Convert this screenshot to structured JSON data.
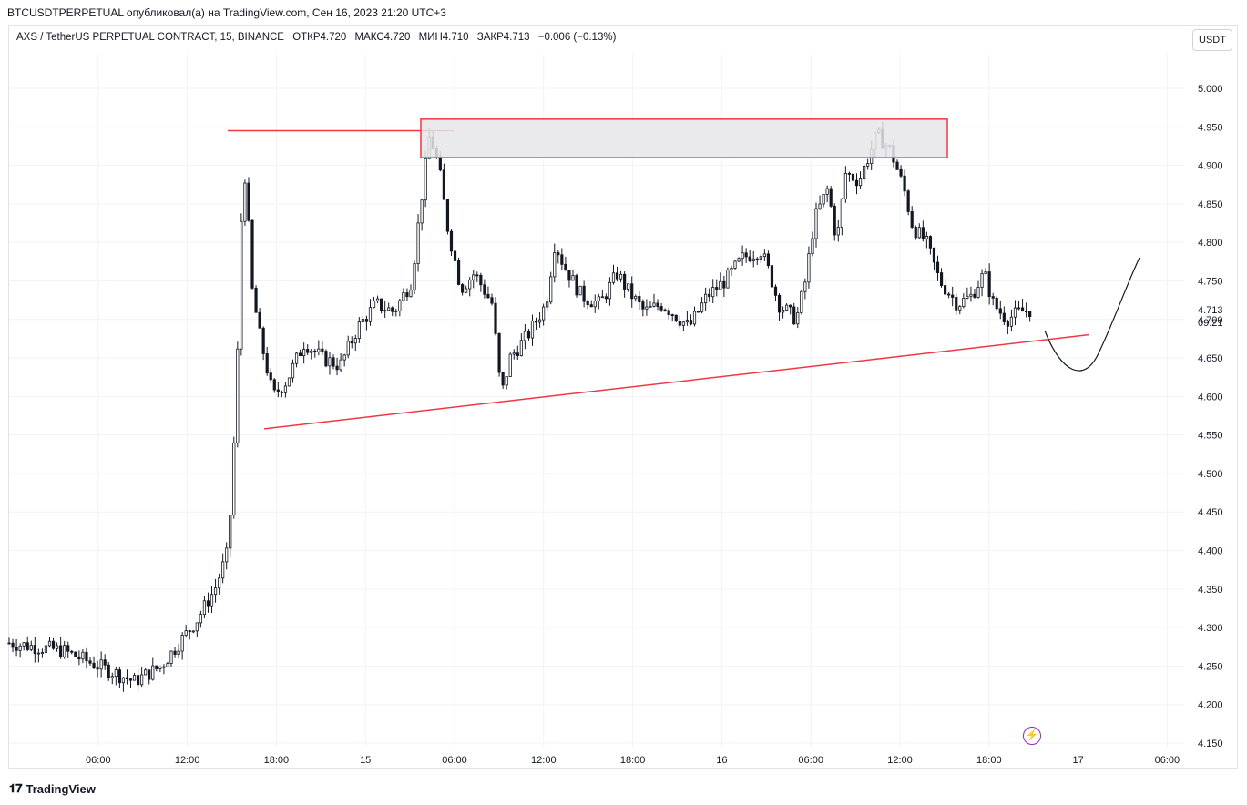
{
  "header": {
    "published_by": "BTCUSDTPERPETUAL опубликовал(а) на TradingView.com, Сен 16, 2023 21:20 UTC+3"
  },
  "legend": {
    "symbol": "AXS / TetherUS PERPETUAL CONTRACT, 15, BINANCE",
    "open": "ОТКР4.720",
    "high": "МАКС4.720",
    "low": "МИН4.710",
    "close": "ЗАКР4.713",
    "change": "−0.006 (−0.13%)"
  },
  "currency_button": "USDT",
  "branding": "TradingView",
  "last_price": {
    "value": "4.713",
    "countdown": "09:21"
  },
  "colors": {
    "candle": "#131722",
    "drawing_red": "#f23645",
    "zone_fill": "#e6e6ea",
    "grid": "#f0f3fa",
    "bolt": "#9c27b0"
  },
  "chart_data": {
    "type": "candlestick",
    "interval": "15",
    "y_ticks": [
      "5.000",
      "4.950",
      "4.900",
      "4.850",
      "4.800",
      "4.750",
      "4.700",
      "4.650",
      "4.600",
      "4.550",
      "4.500",
      "4.450",
      "4.400",
      "4.350",
      "4.300",
      "4.250",
      "4.200",
      "4.150"
    ],
    "ylim": [
      4.15,
      5.0
    ],
    "x_ticks": [
      "06:00",
      "12:00",
      "18:00",
      "15",
      "06:00",
      "12:00",
      "18:00",
      "16",
      "06:00",
      "12:00",
      "18:00",
      "17",
      "06:00"
    ],
    "price_path": [
      [
        0,
        4.28
      ],
      [
        6,
        4.27
      ],
      [
        10,
        4.25
      ],
      [
        14,
        4.23
      ],
      [
        17,
        4.25
      ],
      [
        19,
        4.28
      ],
      [
        21,
        4.31
      ],
      [
        23,
        4.35
      ],
      [
        24.5,
        4.4
      ],
      [
        25.4,
        4.6
      ],
      [
        26,
        4.85
      ],
      [
        26.5,
        4.9
      ],
      [
        27,
        4.75
      ],
      [
        28,
        4.68
      ],
      [
        29.5,
        4.6
      ],
      [
        31,
        4.62
      ],
      [
        33,
        4.67
      ],
      [
        35,
        4.65
      ],
      [
        37,
        4.64
      ],
      [
        39,
        4.69
      ],
      [
        41,
        4.72
      ],
      [
        43,
        4.71
      ],
      [
        45,
        4.75
      ],
      [
        46,
        4.85
      ],
      [
        47,
        4.94
      ],
      [
        48,
        4.9
      ],
      [
        49,
        4.82
      ],
      [
        50.5,
        4.74
      ],
      [
        52,
        4.76
      ],
      [
        54,
        4.72
      ],
      [
        55,
        4.6
      ],
      [
        56,
        4.65
      ],
      [
        58,
        4.68
      ],
      [
        60,
        4.72
      ],
      [
        61,
        4.8
      ],
      [
        62,
        4.77
      ],
      [
        64,
        4.73
      ],
      [
        66,
        4.72
      ],
      [
        68,
        4.76
      ],
      [
        69,
        4.74
      ],
      [
        71,
        4.71
      ],
      [
        73,
        4.72
      ],
      [
        75,
        4.7
      ],
      [
        76,
        4.69
      ],
      [
        78,
        4.73
      ],
      [
        80,
        4.75
      ],
      [
        82,
        4.78
      ],
      [
        84,
        4.79
      ],
      [
        85,
        4.76
      ],
      [
        86,
        4.72
      ],
      [
        88,
        4.7
      ],
      [
        89,
        4.75
      ],
      [
        90,
        4.83
      ],
      [
        91.5,
        4.87
      ],
      [
        92.5,
        4.8
      ],
      [
        93.5,
        4.89
      ],
      [
        95,
        4.88
      ],
      [
        96,
        4.91
      ],
      [
        97,
        4.94
      ],
      [
        98.5,
        4.92
      ],
      [
        100,
        4.87
      ],
      [
        101,
        4.82
      ],
      [
        102.5,
        4.8
      ],
      [
        104,
        4.75
      ],
      [
        106,
        4.72
      ],
      [
        107.5,
        4.73
      ],
      [
        109,
        4.76
      ],
      [
        110,
        4.72
      ],
      [
        111.5,
        4.7
      ],
      [
        113,
        4.71
      ],
      [
        114.5,
        4.713
      ]
    ],
    "annotations": [
      {
        "type": "horizontal-segment",
        "price": 4.945
      },
      {
        "type": "rectangle-zone",
        "price_top": 4.96,
        "price_bottom": 4.91
      },
      {
        "type": "trendline",
        "from_price": 4.558,
        "to_price": 4.68
      },
      {
        "type": "projection-curve"
      }
    ]
  }
}
